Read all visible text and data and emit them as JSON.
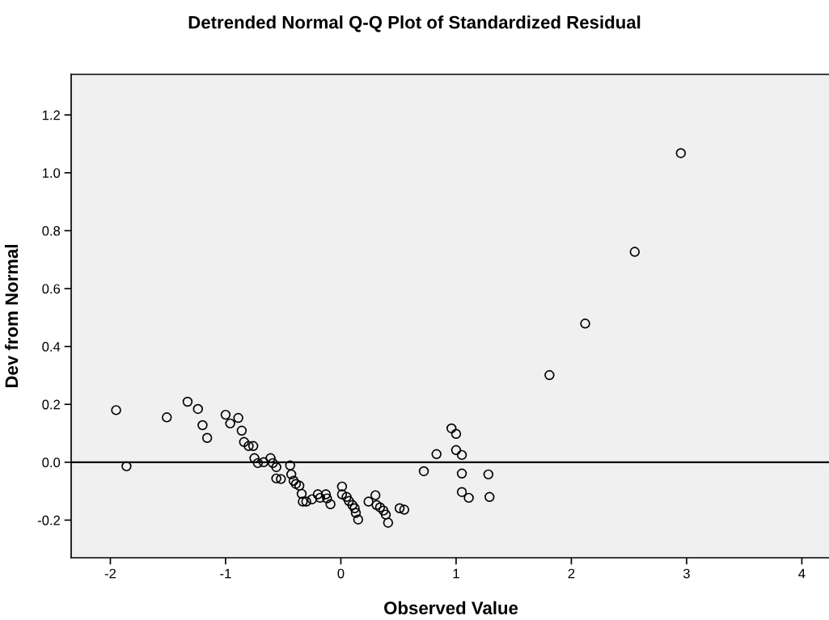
{
  "chart_data": {
    "type": "scatter",
    "title": "Detrended Normal Q-Q Plot of Standardized Residual",
    "xlabel": "Observed Value",
    "ylabel": "Dev from Normal",
    "series": [
      {
        "color": "#000000",
        "x": [
          -1.95,
          -1.86,
          -1.51,
          -1.33,
          -1.24,
          -1.2,
          -1.16,
          -1.0,
          -0.96,
          -0.89,
          -0.86,
          -0.84,
          -0.8,
          -0.76,
          -0.75,
          -0.72,
          -0.67,
          -0.61,
          -0.59,
          -0.56,
          -0.56,
          -0.52,
          -0.44,
          -0.43,
          -0.41,
          -0.39,
          -0.36,
          -0.34,
          -0.33,
          -0.3,
          -0.25,
          -0.2,
          -0.18,
          -0.13,
          -0.12,
          -0.09,
          0.01,
          0.01,
          0.05,
          0.07,
          0.1,
          0.12,
          0.13,
          0.15,
          0.24,
          0.3,
          0.31,
          0.34,
          0.37,
          0.39,
          0.41,
          0.51,
          0.55,
          0.72,
          0.83,
          0.96,
          1.0,
          1.0,
          1.05,
          1.05,
          1.05,
          1.11,
          1.28,
          1.29,
          1.81,
          2.12,
          2.55,
          2.95
        ],
        "values": [
          0.18,
          -0.014,
          0.155,
          0.209,
          0.184,
          0.128,
          0.084,
          0.164,
          0.134,
          0.153,
          0.109,
          0.07,
          0.056,
          0.056,
          0.014,
          -0.003,
          0.0,
          0.014,
          -0.003,
          -0.017,
          -0.056,
          -0.058,
          -0.011,
          -0.042,
          -0.064,
          -0.075,
          -0.081,
          -0.109,
          -0.136,
          -0.136,
          -0.128,
          -0.111,
          -0.123,
          -0.111,
          -0.125,
          -0.145,
          -0.084,
          -0.111,
          -0.12,
          -0.134,
          -0.148,
          -0.159,
          -0.175,
          -0.198,
          -0.136,
          -0.114,
          -0.148,
          -0.156,
          -0.167,
          -0.181,
          -0.209,
          -0.159,
          -0.164,
          -0.031,
          0.028,
          0.117,
          0.098,
          0.042,
          0.025,
          -0.039,
          -0.103,
          -0.123,
          -0.042,
          -0.12,
          0.301,
          0.479,
          0.727,
          1.068
        ]
      }
    ],
    "marker": "circle",
    "grid": false,
    "legend": false,
    "xlim": [
      -2.34,
      4.25
    ],
    "ylim": [
      -0.33,
      1.34
    ],
    "xticks": [
      -2,
      -1,
      0,
      1,
      2,
      3,
      4
    ],
    "yticks": [
      {
        "value": -0.2,
        "label": "-0.2"
      },
      {
        "value": 0.0,
        "label": "0.0"
      },
      {
        "value": 0.2,
        "label": "0.2"
      },
      {
        "value": 0.4,
        "label": "0.4"
      },
      {
        "value": 0.6,
        "label": "0.6"
      },
      {
        "value": 0.8,
        "label": "0.8"
      },
      {
        "value": 1.0,
        "label": "1.0"
      },
      {
        "value": 1.2,
        "label": "1.2"
      }
    ],
    "ref_lines": [
      {
        "axis": "y",
        "value": 0.0,
        "label": null,
        "color": "#000000"
      }
    ]
  }
}
